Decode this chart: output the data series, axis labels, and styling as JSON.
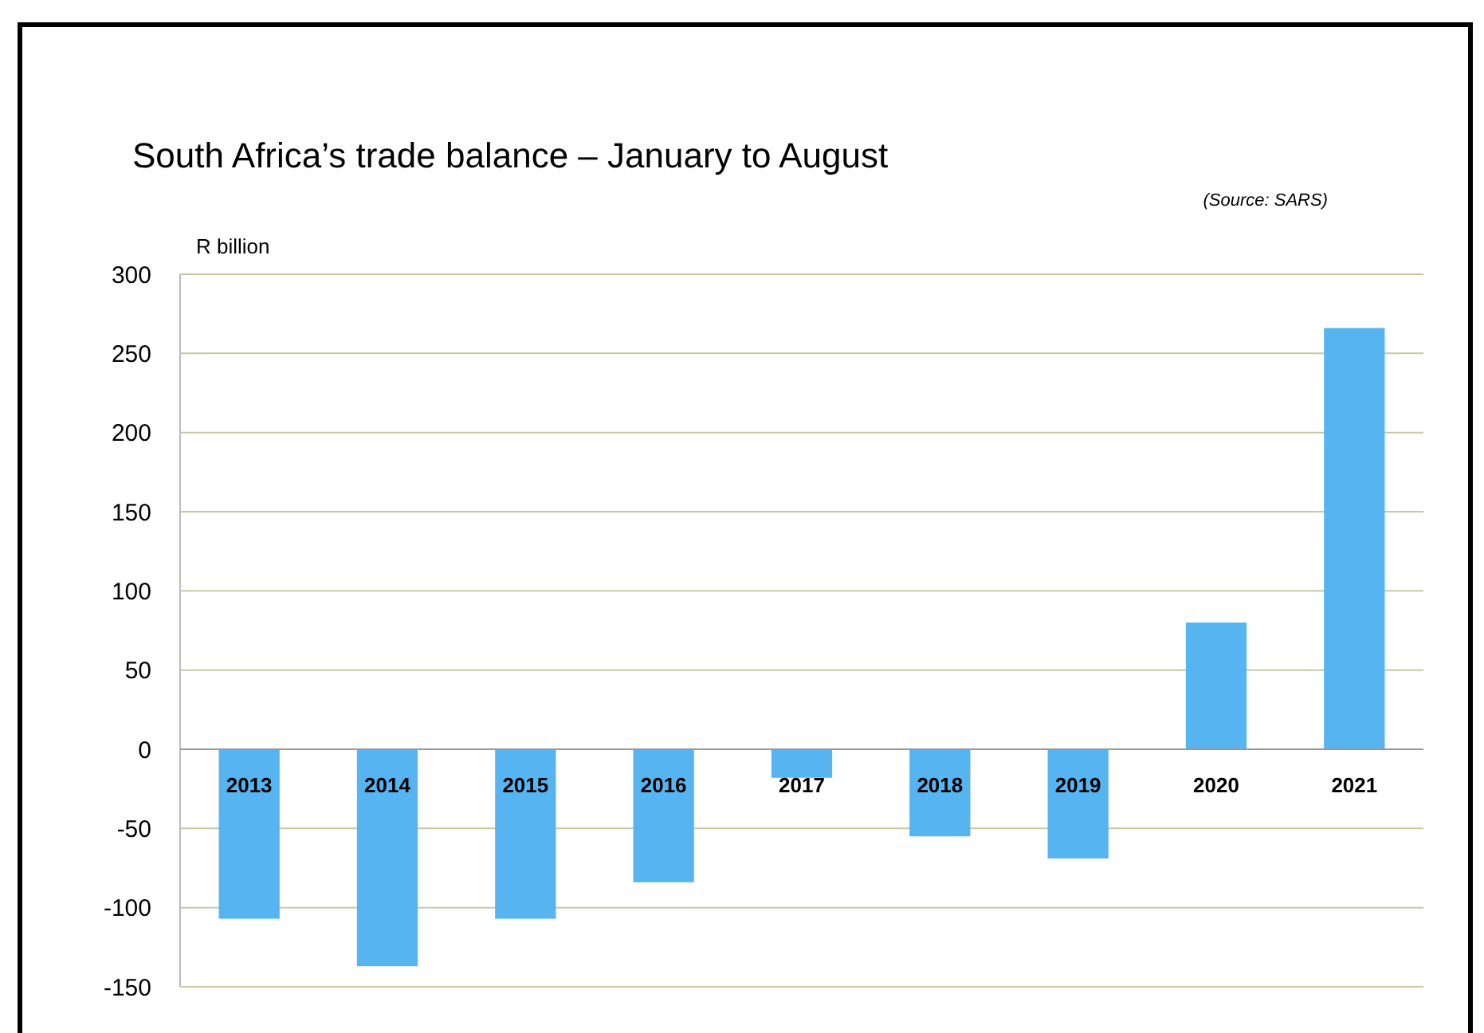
{
  "chart_data": {
    "type": "bar",
    "title": "South Africa’s trade balance – January to August",
    "ylabel": "R billion",
    "annotations": [
      "(Source: SARS)"
    ],
    "categories": [
      "2013",
      "2014",
      "2015",
      "2016",
      "2017",
      "2018",
      "2019",
      "2020",
      "2021"
    ],
    "values": [
      -107,
      -137,
      -107,
      -84,
      -18,
      -55,
      -69,
      80,
      266
    ],
    "color": "#56b4f0",
    "ylim": [
      -150,
      300
    ],
    "yticks": [
      -150,
      -100,
      -50,
      0,
      50,
      100,
      150,
      200,
      250,
      300
    ],
    "grid": "y"
  }
}
